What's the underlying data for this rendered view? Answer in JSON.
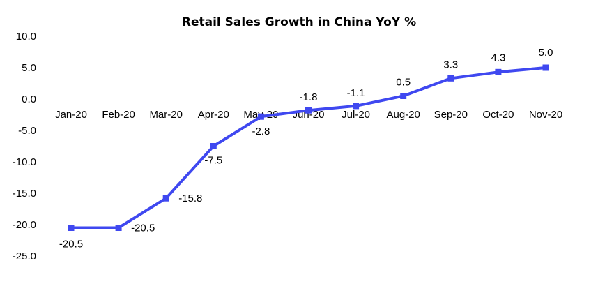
{
  "chart_data": {
    "type": "line",
    "title": "Retail Sales Growth in China YoY %",
    "xlabel": "",
    "ylabel": "",
    "categories": [
      "Jan-20",
      "Feb-20",
      "Mar-20",
      "Apr-20",
      "May-20",
      "Jun-20",
      "Jul-20",
      "Aug-20",
      "Sep-20",
      "Oct-20",
      "Nov-20"
    ],
    "series": [
      {
        "values": [
          -20.5,
          -20.5,
          -15.8,
          -7.5,
          -2.8,
          -1.8,
          -1.1,
          0.5,
          3.3,
          4.3,
          5.0
        ],
        "color": "#3f48f0"
      }
    ],
    "data_labels": [
      "-20.5",
      "-20.5",
      "-15.8",
      "-7.5",
      "-2.8",
      "-1.8",
      "-1.1",
      "0.5",
      "3.3",
      "4.3",
      "5.0"
    ],
    "yticks": [
      "10.0",
      "5.0",
      "0.0",
      "-5.0",
      "-10.0",
      "-15.0",
      "-20.0",
      "-25.0"
    ],
    "ylim": [
      -25,
      10
    ],
    "grid": false,
    "legend": "none",
    "marker": "square"
  }
}
